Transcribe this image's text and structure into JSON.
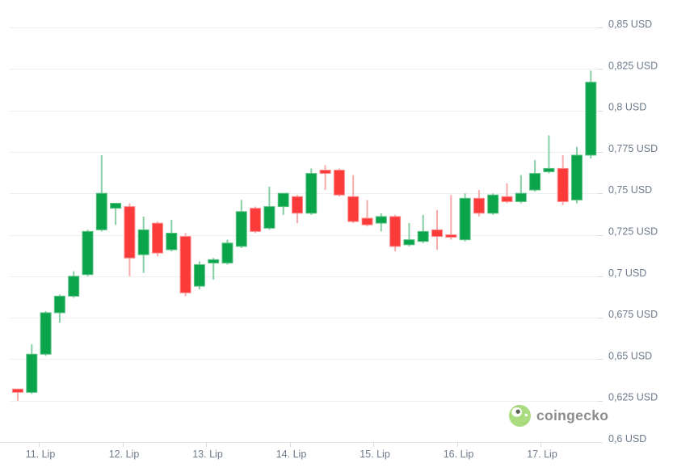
{
  "watermark": {
    "text": "coingecko"
  },
  "chart_data": {
    "type": "candlestick",
    "title": "",
    "currency": "USD",
    "interval": "4h",
    "ylim": [
      0.6,
      0.85
    ],
    "grid": "horizontal-only",
    "y_axis": {
      "values": [
        0.85,
        0.825,
        0.8,
        0.775,
        0.75,
        0.725,
        0.7,
        0.675,
        0.65,
        0.625,
        0.6
      ],
      "labels": [
        "0,85 USD",
        "0,825 USD",
        "0,8 USD",
        "0,775 USD",
        "0,75 USD",
        "0,725 USD",
        "0,7 USD",
        "0,675 USD",
        "0,65 USD",
        "0,625 USD",
        "0,6 USD"
      ]
    },
    "x_axis": {
      "labels": [
        "11. Lip",
        "12. Lip",
        "13. Lip",
        "14. Lip",
        "15. Lip",
        "16. Lip",
        "17. Lip"
      ]
    },
    "series": [
      {
        "o": 0.632,
        "h": 0.632,
        "l": 0.625,
        "c": 0.63
      },
      {
        "o": 0.63,
        "h": 0.659,
        "l": 0.629,
        "c": 0.653
      },
      {
        "o": 0.653,
        "h": 0.679,
        "l": 0.652,
        "c": 0.678
      },
      {
        "o": 0.678,
        "h": 0.689,
        "l": 0.672,
        "c": 0.688
      },
      {
        "o": 0.688,
        "h": 0.703,
        "l": 0.687,
        "c": 0.7
      },
      {
        "o": 0.701,
        "h": 0.728,
        "l": 0.7,
        "c": 0.727
      },
      {
        "o": 0.728,
        "h": 0.773,
        "l": 0.727,
        "c": 0.75
      },
      {
        "o": 0.741,
        "h": 0.744,
        "l": 0.731,
        "c": 0.744
      },
      {
        "o": 0.742,
        "h": 0.744,
        "l": 0.7,
        "c": 0.711
      },
      {
        "o": 0.713,
        "h": 0.736,
        "l": 0.702,
        "c": 0.728
      },
      {
        "o": 0.732,
        "h": 0.733,
        "l": 0.712,
        "c": 0.714
      },
      {
        "o": 0.716,
        "h": 0.734,
        "l": 0.715,
        "c": 0.726
      },
      {
        "o": 0.724,
        "h": 0.726,
        "l": 0.688,
        "c": 0.69
      },
      {
        "o": 0.694,
        "h": 0.709,
        "l": 0.692,
        "c": 0.707
      },
      {
        "o": 0.708,
        "h": 0.711,
        "l": 0.698,
        "c": 0.71
      },
      {
        "o": 0.708,
        "h": 0.722,
        "l": 0.707,
        "c": 0.72
      },
      {
        "o": 0.718,
        "h": 0.746,
        "l": 0.717,
        "c": 0.739
      },
      {
        "o": 0.741,
        "h": 0.742,
        "l": 0.726,
        "c": 0.727
      },
      {
        "o": 0.729,
        "h": 0.754,
        "l": 0.728,
        "c": 0.742
      },
      {
        "o": 0.742,
        "h": 0.75,
        "l": 0.737,
        "c": 0.75
      },
      {
        "o": 0.748,
        "h": 0.749,
        "l": 0.732,
        "c": 0.738
      },
      {
        "o": 0.738,
        "h": 0.765,
        "l": 0.737,
        "c": 0.762
      },
      {
        "o": 0.764,
        "h": 0.767,
        "l": 0.752,
        "c": 0.762
      },
      {
        "o": 0.764,
        "h": 0.765,
        "l": 0.748,
        "c": 0.749
      },
      {
        "o": 0.748,
        "h": 0.761,
        "l": 0.732,
        "c": 0.733
      },
      {
        "o": 0.735,
        "h": 0.746,
        "l": 0.73,
        "c": 0.731
      },
      {
        "o": 0.732,
        "h": 0.738,
        "l": 0.727,
        "c": 0.736
      },
      {
        "o": 0.736,
        "h": 0.737,
        "l": 0.715,
        "c": 0.718
      },
      {
        "o": 0.719,
        "h": 0.732,
        "l": 0.718,
        "c": 0.722
      },
      {
        "o": 0.721,
        "h": 0.737,
        "l": 0.72,
        "c": 0.727
      },
      {
        "o": 0.728,
        "h": 0.74,
        "l": 0.716,
        "c": 0.724
      },
      {
        "o": 0.725,
        "h": 0.749,
        "l": 0.722,
        "c": 0.724
      },
      {
        "o": 0.722,
        "h": 0.75,
        "l": 0.721,
        "c": 0.747
      },
      {
        "o": 0.747,
        "h": 0.752,
        "l": 0.736,
        "c": 0.738
      },
      {
        "o": 0.738,
        "h": 0.75,
        "l": 0.737,
        "c": 0.749
      },
      {
        "o": 0.748,
        "h": 0.756,
        "l": 0.744,
        "c": 0.745
      },
      {
        "o": 0.745,
        "h": 0.761,
        "l": 0.744,
        "c": 0.75
      },
      {
        "o": 0.752,
        "h": 0.77,
        "l": 0.751,
        "c": 0.762
      },
      {
        "o": 0.763,
        "h": 0.785,
        "l": 0.762,
        "c": 0.765
      },
      {
        "o": 0.765,
        "h": 0.773,
        "l": 0.743,
        "c": 0.745
      },
      {
        "o": 0.746,
        "h": 0.778,
        "l": 0.744,
        "c": 0.773
      },
      {
        "o": 0.773,
        "h": 0.824,
        "l": 0.771,
        "c": 0.817
      }
    ],
    "colors": {
      "up": "#0aa44a",
      "up_border": "#5cc184",
      "up_wick": "#86cfa2",
      "down": "#fb3a3a",
      "down_border": "#fc8d8d",
      "down_wick": "#f9abab",
      "grid": "#efeff1",
      "axis_line": "#e6e8ea",
      "tick": "#d8dbde",
      "label": "#6d7a8c"
    }
  }
}
